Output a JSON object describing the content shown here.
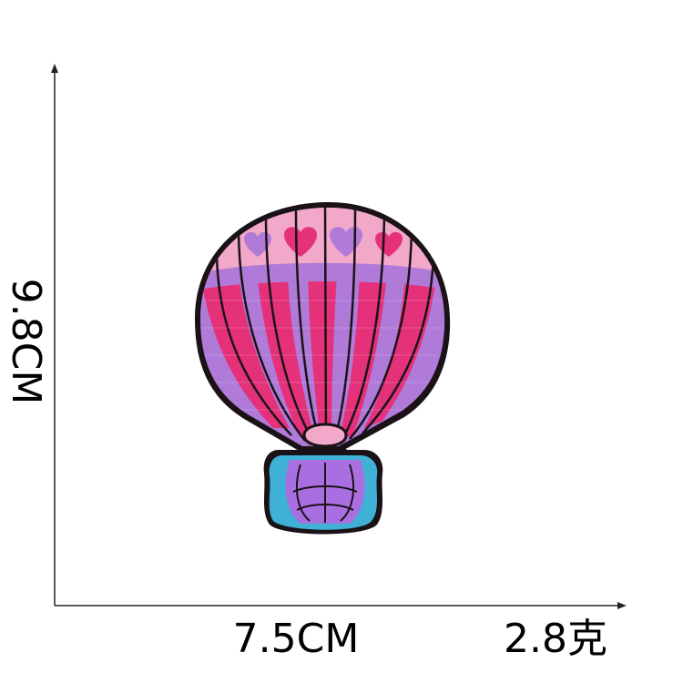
{
  "dimensions": {
    "width_label": "7.5CM",
    "height_label": "9.8CM",
    "weight_label": "2.8克"
  },
  "colors": {
    "outline": "#1a1216",
    "pink": "#e4317a",
    "purple": "#b07ad8",
    "light_pink": "#f2a9c9",
    "basket_blue": "#3fb0d6",
    "basket_purple": "#a96fe0"
  },
  "image": {
    "subject": "hot-air-balloon-patch"
  }
}
